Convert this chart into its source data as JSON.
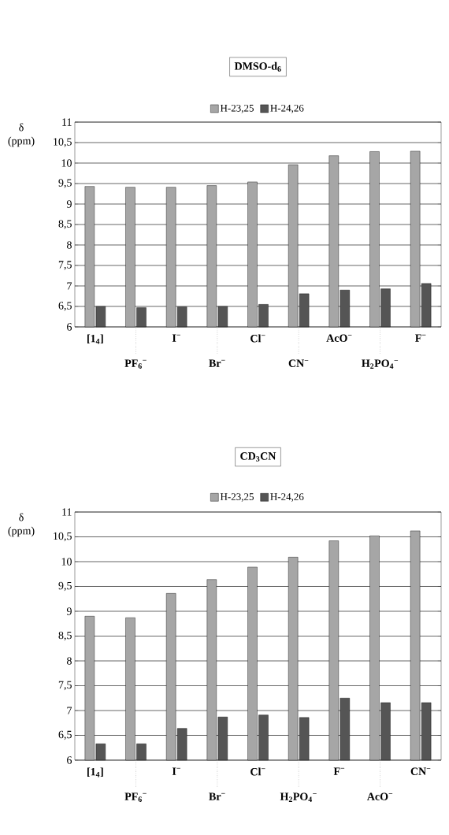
{
  "chart_data": [
    {
      "type": "bar",
      "title": "DMSO-d$_{6}$",
      "ylabel": "δ (ppm)",
      "categories": [
        "[1$_{4}$]",
        "PF$_{6}$$^{−}$",
        "I$^{−}$",
        "Br$^{−}$",
        "Cl$^{−}$",
        "CN$^{−}$",
        "AcO$^{−}$",
        "H$_{2}$PO$_{4}$$^{−}$",
        "F$^{−}$"
      ],
      "series": [
        {
          "name": "H-23,25",
          "color": "#a6a6a6",
          "values": [
            9.43,
            9.41,
            9.41,
            9.45,
            9.54,
            9.96,
            10.18,
            10.28,
            10.29
          ]
        },
        {
          "name": "H-24,26",
          "color": "#555555",
          "values": [
            6.5,
            6.47,
            6.49,
            6.5,
            6.55,
            6.81,
            6.9,
            6.93,
            7.06
          ]
        }
      ],
      "ylim": [
        6,
        11
      ],
      "yticks": [
        6,
        {
          "value": 6.5,
          "label": "6,5"
        },
        7,
        {
          "value": 7.5,
          "label": "7,5"
        },
        8,
        {
          "value": 8.5,
          "label": "8,5"
        },
        9,
        {
          "value": 9.5,
          "label": "9,5"
        },
        10,
        {
          "value": 10.5,
          "label": "10,5"
        },
        11
      ],
      "grid": "y",
      "legend": "top"
    },
    {
      "type": "bar",
      "title": "CD$_{3}$CN",
      "ylabel": "δ (ppm)",
      "categories": [
        "[1$_{4}$]",
        "PF$_{6}$$^{−}$",
        "I$^{−}$",
        "Br$^{−}$",
        "Cl$^{−}$",
        "H$_{2}$PO$_{4}$$^{−}$",
        "F$^{−}$",
        "AcO$^{−}$",
        "CN$^{−}$"
      ],
      "series": [
        {
          "name": "H-23,25",
          "color": "#a6a6a6",
          "values": [
            8.9,
            8.87,
            9.36,
            9.64,
            9.89,
            10.09,
            10.42,
            10.52,
            10.62
          ]
        },
        {
          "name": "H-24,26",
          "color": "#555555",
          "values": [
            6.33,
            6.33,
            6.64,
            6.87,
            6.91,
            6.86,
            7.25,
            7.16,
            7.16
          ]
        }
      ],
      "ylim": [
        6,
        11
      ],
      "yticks": [
        6,
        {
          "value": 6.5,
          "label": "6,5"
        },
        7,
        {
          "value": 7.5,
          "label": "7,5"
        },
        8,
        {
          "value": 8.5,
          "label": "8,5"
        },
        9,
        {
          "value": 9.5,
          "label": "9,5"
        },
        10,
        {
          "value": 10.5,
          "label": "10,5"
        },
        11
      ],
      "grid": "y",
      "legend": "top"
    }
  ]
}
